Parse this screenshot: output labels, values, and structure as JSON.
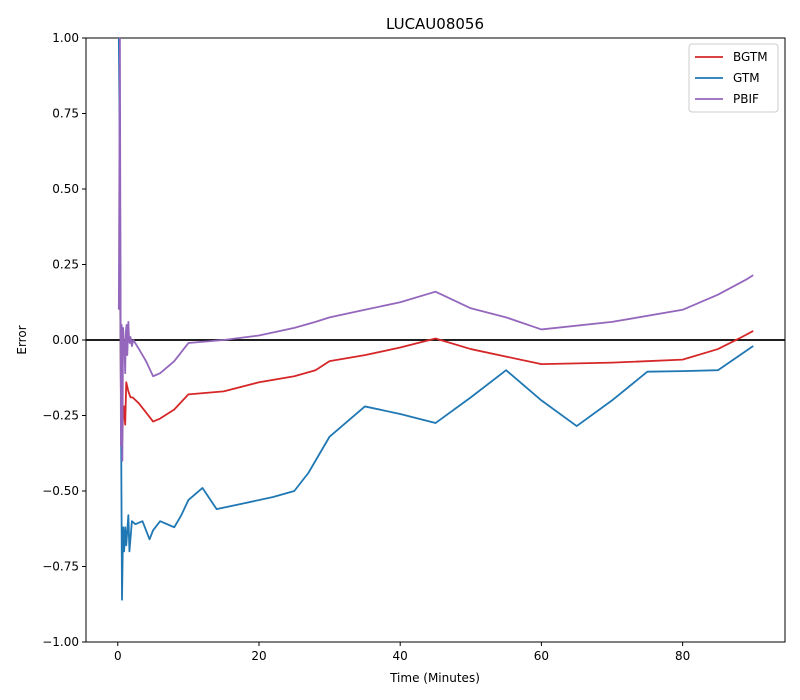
{
  "chart_data": {
    "type": "line",
    "title": "LUCAU08056",
    "xlabel": "Time (Minutes)",
    "ylabel": "Error",
    "xlim": [
      -4.5,
      94.5
    ],
    "ylim": [
      -1.0,
      1.0
    ],
    "xticks": [
      0,
      20,
      40,
      60,
      80
    ],
    "yticks": [
      -1.0,
      -0.75,
      -0.5,
      -0.25,
      0.0,
      0.25,
      0.5,
      0.75,
      1.0
    ],
    "xtick_labels": [
      "0",
      "20",
      "40",
      "60",
      "80"
    ],
    "ytick_labels": [
      "−1.00",
      "−0.75",
      "−0.50",
      "−0.25",
      "0.00",
      "0.25",
      "0.50",
      "0.75",
      "1.00"
    ],
    "reference_line_y": 0.0,
    "legend_position": "top-right",
    "grid": false,
    "series": [
      {
        "name": "BGTM",
        "color": "#d62728",
        "x": [
          0.3,
          0.45,
          0.6,
          0.75,
          0.9,
          1.05,
          1.2,
          1.5,
          1.8,
          2.1,
          3.0,
          4.0,
          5.0,
          6.0,
          8.0,
          10.0,
          15.0,
          20.0,
          25.0,
          28.0,
          30.0,
          35.0,
          40.0,
          45.0,
          50.0,
          55.0,
          60.0,
          70.0,
          80.0,
          85.0,
          88.0,
          90.0
        ],
        "y": [
          0.3,
          -0.2,
          -0.35,
          -0.25,
          -0.22,
          -0.28,
          -0.14,
          -0.17,
          -0.19,
          -0.19,
          -0.21,
          -0.24,
          -0.27,
          -0.26,
          -0.23,
          -0.18,
          -0.17,
          -0.14,
          -0.12,
          -0.1,
          -0.07,
          -0.05,
          -0.025,
          0.005,
          -0.03,
          -0.055,
          -0.08,
          -0.075,
          -0.065,
          -0.03,
          0.005,
          0.03
        ]
      },
      {
        "name": "GTM",
        "color": "#1f77b4",
        "x": [
          0.15,
          0.3,
          0.45,
          0.6,
          0.75,
          0.9,
          1.05,
          1.2,
          1.5,
          1.65,
          2.0,
          2.5,
          3.5,
          4.5,
          5.0,
          6.0,
          8.0,
          9.0,
          10.0,
          12.0,
          14.0,
          18.0,
          22.0,
          25.0,
          27.0,
          30.0,
          35.0,
          40.0,
          45.0,
          50.0,
          55.0,
          60.0,
          65.0,
          70.0,
          75.0,
          80.0,
          85.0,
          90.0
        ],
        "y": [
          1.0,
          0.6,
          -0.2,
          -0.86,
          -0.62,
          -0.7,
          -0.62,
          -0.68,
          -0.58,
          -0.7,
          -0.6,
          -0.61,
          -0.6,
          -0.66,
          -0.63,
          -0.6,
          -0.62,
          -0.58,
          -0.53,
          -0.49,
          -0.56,
          -0.54,
          -0.52,
          -0.5,
          -0.44,
          -0.32,
          -0.22,
          -0.245,
          -0.275,
          -0.19,
          -0.1,
          -0.2,
          -0.285,
          -0.2,
          -0.105,
          -0.103,
          -0.1,
          -0.02
        ]
      },
      {
        "name": "PBIF",
        "color": "#9467bd",
        "x": [
          0.15,
          0.3,
          0.45,
          0.55,
          0.65,
          0.75,
          0.85,
          0.95,
          1.05,
          1.15,
          1.25,
          1.35,
          1.5,
          1.6,
          1.7,
          1.8,
          2.0,
          2.2,
          3.0,
          4.0,
          5.0,
          6.0,
          8.0,
          10.0,
          15.0,
          20.0,
          25.0,
          28.0,
          30.0,
          35.0,
          40.0,
          45.0,
          50.0,
          55.0,
          60.0,
          70.0,
          80.0,
          85.0,
          89.0,
          90.0
        ],
        "y": [
          0.1,
          1.0,
          -0.35,
          0.05,
          -0.4,
          0.04,
          0.0,
          -0.02,
          -0.11,
          0.03,
          0.05,
          -0.05,
          0.06,
          0.0,
          -0.01,
          0.01,
          -0.02,
          0.0,
          -0.03,
          -0.07,
          -0.12,
          -0.11,
          -0.07,
          -0.01,
          0.0,
          0.015,
          0.04,
          0.06,
          0.075,
          0.1,
          0.125,
          0.16,
          0.105,
          0.075,
          0.035,
          0.06,
          0.1,
          0.15,
          0.2,
          0.215
        ]
      }
    ]
  }
}
